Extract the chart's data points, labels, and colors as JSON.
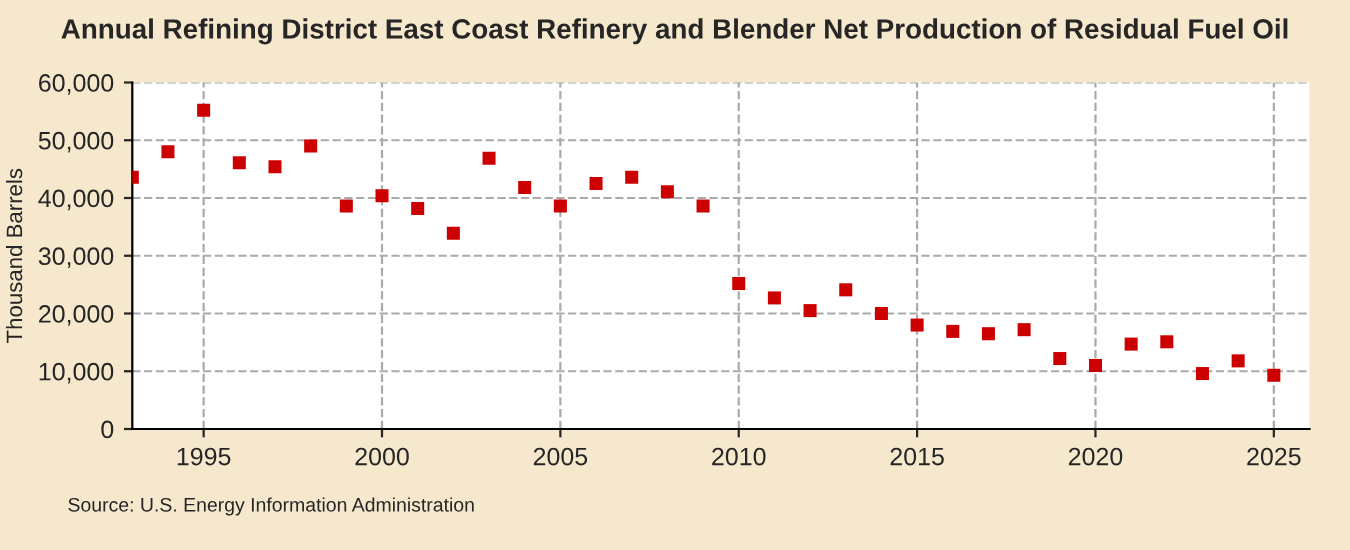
{
  "chart_data": {
    "type": "scatter",
    "title": "Annual Refining District East Coast Refinery and Blender Net Production of Residual Fuel Oil",
    "ylabel": "Thousand Barrels",
    "annotations": [
      "Source: U.S. Energy Information Administration"
    ],
    "x": [
      1993,
      1994,
      1995,
      1996,
      1997,
      1998,
      1999,
      2000,
      2001,
      2002,
      2003,
      2004,
      2005,
      2006,
      2007,
      2008,
      2009,
      2010,
      2011,
      2012,
      2013,
      2014,
      2015,
      2016,
      2017,
      2018,
      2019,
      2020,
      2021,
      2022,
      2023,
      2024,
      2025
    ],
    "series": [
      {
        "color": "#cc0000",
        "values": [
          43600,
          48000,
          55200,
          46100,
          45400,
          49000,
          38600,
          40400,
          38200,
          33900,
          46900,
          41800,
          38600,
          42500,
          43600,
          41100,
          38600,
          25200,
          22700,
          20500,
          24100,
          20000,
          18000,
          16900,
          16500,
          17200,
          12200,
          11000,
          14700,
          15100,
          9600,
          11800,
          9300
        ]
      }
    ],
    "marker": "square",
    "xlim": [
      1993,
      2026
    ],
    "xticks": [
      1995,
      2000,
      2005,
      2010,
      2015,
      2020,
      2025
    ],
    "ylim": [
      0,
      60000
    ],
    "yticks": [
      {
        "value": 0,
        "label": "0"
      },
      {
        "value": 10000,
        "label": "10,000"
      },
      {
        "value": 20000,
        "label": "20,000"
      },
      {
        "value": 30000,
        "label": "30,000"
      },
      {
        "value": 40000,
        "label": "40,000"
      },
      {
        "value": 50000,
        "label": "50,000"
      },
      {
        "value": 60000,
        "label": "60,000"
      }
    ],
    "grid": true,
    "legend": false
  }
}
